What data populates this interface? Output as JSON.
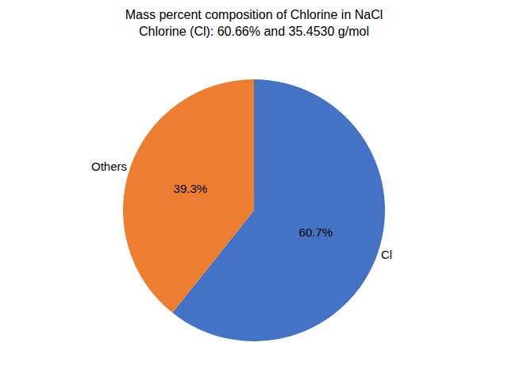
{
  "chart_data": {
    "type": "pie",
    "title": "Mass percent composition of Chlorine in NaCl",
    "subtitle": "Chlorine (Cl): 60.66% and 35.4530 g/mol",
    "categories": [
      "Cl",
      "Others"
    ],
    "values": [
      60.7,
      39.3
    ],
    "value_labels": [
      "60.7%",
      "39.3%"
    ],
    "data_labels": true,
    "colors": [
      "#4472c4",
      "#ed7d31"
    ]
  }
}
